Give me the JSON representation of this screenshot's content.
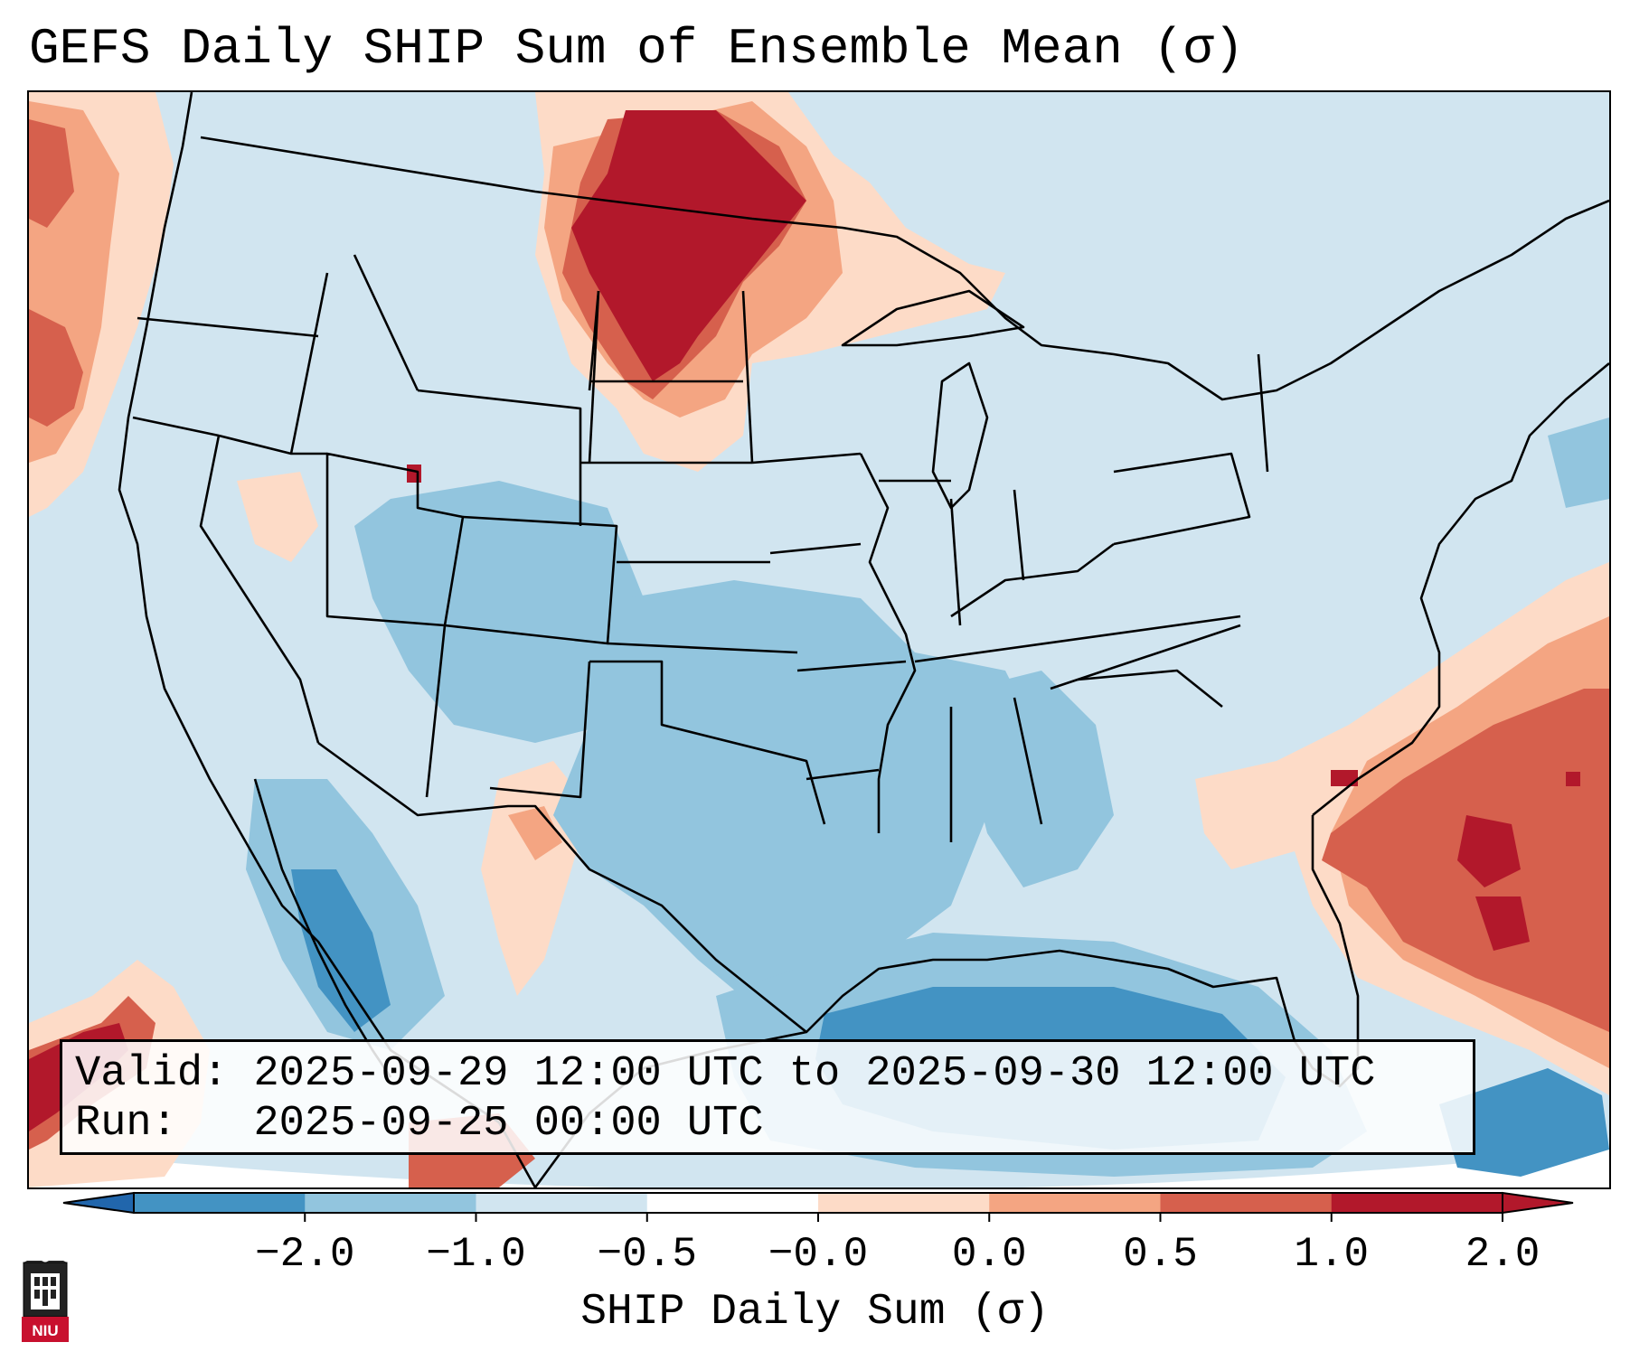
{
  "title": "GEFS Daily SHIP Sum of Ensemble Mean (σ)",
  "info": {
    "valid_label": "Valid:",
    "valid_value": "2025-09-29 12:00 UTC to 2025-09-30 12:00 UTC",
    "run_label": "Run:",
    "run_value": "2025-09-25 00:00 UTC"
  },
  "colorbar": {
    "title": "SHIP Daily Sum (σ)",
    "tick_labels": [
      "−2.0",
      "−1.0",
      "−0.5",
      "−0.0",
      "0.0",
      "0.5",
      "1.0",
      "2.0"
    ],
    "bin_colors": [
      "#4393c3",
      "#92c5de",
      "#d1e5f0",
      "#ffffff",
      "#fddbc7",
      "#f4a582",
      "#d6604d",
      "#b2182b"
    ],
    "extend": "both"
  },
  "map": {
    "projection": "Lambert Conformal (CONUS)",
    "background_color": "#d1e5f0",
    "anomaly_regions": [
      {
        "name": "northern-plains-high",
        "level": 2.0,
        "color": "#b2182b"
      },
      {
        "name": "southeast-atlantic-high",
        "level": 1.0,
        "color": "#d6604d"
      },
      {
        "name": "pacific-northwest-coast-high",
        "level": 0.5,
        "color": "#f4a582"
      },
      {
        "name": "eastern-pacific-southwest-high",
        "level": 2.0,
        "color": "#b2182b"
      },
      {
        "name": "southern-plains-low",
        "level": -1.0,
        "color": "#92c5de"
      },
      {
        "name": "gulf-of-mexico-low",
        "level": -2.0,
        "color": "#4393c3"
      },
      {
        "name": "gulf-of-california-low",
        "level": -2.0,
        "color": "#4393c3"
      }
    ]
  },
  "logo": {
    "text": "NIU"
  }
}
